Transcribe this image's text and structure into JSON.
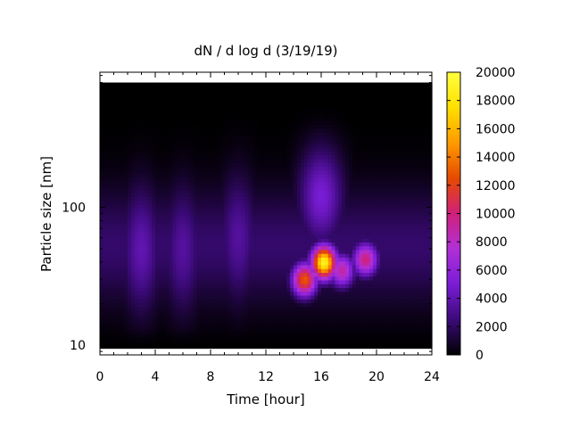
{
  "chart_data": {
    "type": "heatmap",
    "title": "dN / d log d (3/19/19)",
    "xlabel": "Time [hour]",
    "ylabel": "Particle size [nm]",
    "x_range": [
      0,
      24
    ],
    "x_ticks": [
      0,
      4,
      8,
      12,
      16,
      20,
      24
    ],
    "x_tick_labels": [
      "0",
      "4",
      "8",
      "12",
      "16",
      "20",
      "24"
    ],
    "y_scale": "log",
    "y_range": [
      8.5,
      950
    ],
    "y_ticks": [
      10,
      100
    ],
    "y_tick_labels": [
      "10",
      "100"
    ],
    "colorbar": {
      "range": [
        0,
        20000
      ],
      "ticks": [
        0,
        2000,
        4000,
        6000,
        8000,
        10000,
        12000,
        14000,
        16000,
        18000,
        20000
      ],
      "tick_labels": [
        "0",
        "2000",
        "4000",
        "6000",
        "8000",
        "10000",
        "12000",
        "14000",
        "16000",
        "18000",
        "20000"
      ],
      "colormap": [
        "#000000",
        "#3b0a78",
        "#7a1cd6",
        "#b030d8",
        "#d0207a",
        "#e64a00",
        "#ff9a00",
        "#ffe000",
        "#ffff40"
      ]
    },
    "data_extent": {
      "time_range": [
        0,
        24
      ],
      "size_range_nm": [
        9.5,
        800
      ]
    },
    "features": [
      {
        "time": 16.2,
        "size_nm": 40,
        "value": 19000
      },
      {
        "time": 14.8,
        "size_nm": 30,
        "value": 13000
      },
      {
        "time": 19.2,
        "size_nm": 42,
        "value": 10000
      },
      {
        "time": 17.5,
        "size_nm": 35,
        "value": 9000
      },
      {
        "time": 16.0,
        "size_nm": 120,
        "value": 5000
      },
      {
        "time": 3.0,
        "size_nm": 50,
        "value": 4000
      },
      {
        "time": 6.0,
        "size_nm": 50,
        "value": 3500
      },
      {
        "time": 10.0,
        "size_nm": 60,
        "value": 3500
      }
    ]
  }
}
